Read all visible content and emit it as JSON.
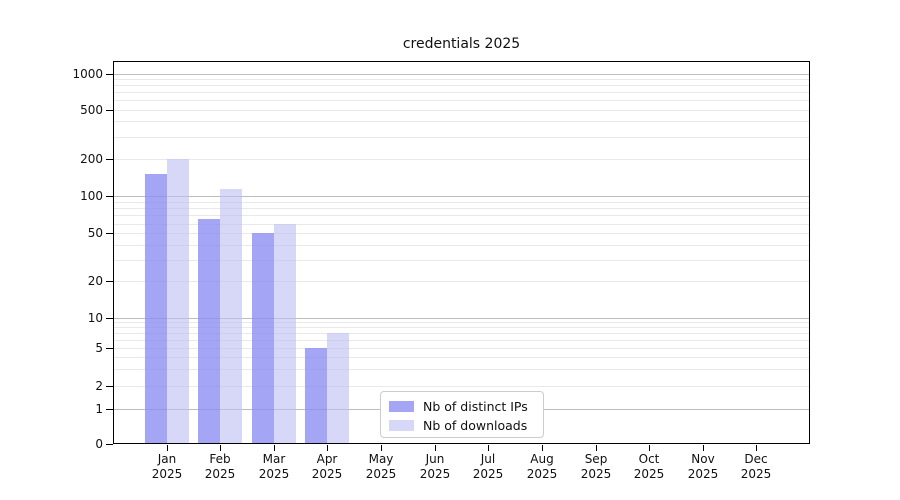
{
  "chart_data": {
    "type": "bar",
    "title": "credentials 2025",
    "categories": [
      "Jan 2025",
      "Feb 2025",
      "Mar 2025",
      "Apr 2025",
      "May 2025",
      "Jun 2025",
      "Jul 2025",
      "Aug 2025",
      "Sep 2025",
      "Oct 2025",
      "Nov 2025",
      "Dec 2025"
    ],
    "series": [
      {
        "name": "Nb of distinct IPs",
        "color": "rgba(140,140,243,0.78)",
        "values": [
          150,
          65,
          50,
          5,
          0,
          0,
          0,
          0,
          0,
          0,
          0,
          0
        ]
      },
      {
        "name": "Nb of downloads",
        "color": "rgba(189,189,243,0.60)",
        "values": [
          200,
          115,
          60,
          7,
          0,
          0,
          0,
          0,
          0,
          0,
          0,
          0
        ]
      }
    ],
    "xlabel": "",
    "ylabel": "",
    "yscale": "symlog",
    "yticks": [
      0,
      1,
      2,
      5,
      10,
      20,
      50,
      100,
      200,
      500,
      1000
    ],
    "ylim": [
      0,
      1300
    ],
    "grid": "horizontal major and minor gridlines",
    "legend_position": "inside lower-center",
    "colors": {
      "grid_major": "#bdbdbd",
      "grid_minor": "#e9e9e9",
      "axis": "#000000",
      "background": "#ffffff"
    }
  }
}
